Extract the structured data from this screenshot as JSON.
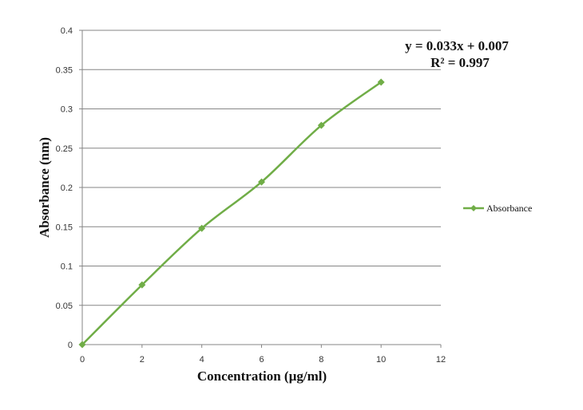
{
  "chart_data": {
    "type": "line",
    "xlabel": "Concentration (µg/ml)",
    "ylabel": "Absorbance (nm)",
    "xlim": [
      0,
      12
    ],
    "ylim": [
      0,
      0.4
    ],
    "x_ticks": [
      "0",
      "2",
      "4",
      "6",
      "8",
      "10",
      "12"
    ],
    "y_ticks": [
      "0",
      "0.05",
      "0.1",
      "0.15",
      "0.2",
      "0.25",
      "0.3",
      "0.35",
      "0.4"
    ],
    "grid": "horizontal",
    "legend_position": "right",
    "series": [
      {
        "name": "Absorbance",
        "color": "#70ad47",
        "marker": "diamond",
        "x": [
          0,
          2,
          4,
          6,
          8,
          10
        ],
        "y": [
          0,
          0.076,
          0.148,
          0.207,
          0.279,
          0.334
        ]
      }
    ],
    "annotations": {
      "equation": "y = 0.033x + 0.007",
      "r_squared": "R² = 0.997"
    }
  }
}
